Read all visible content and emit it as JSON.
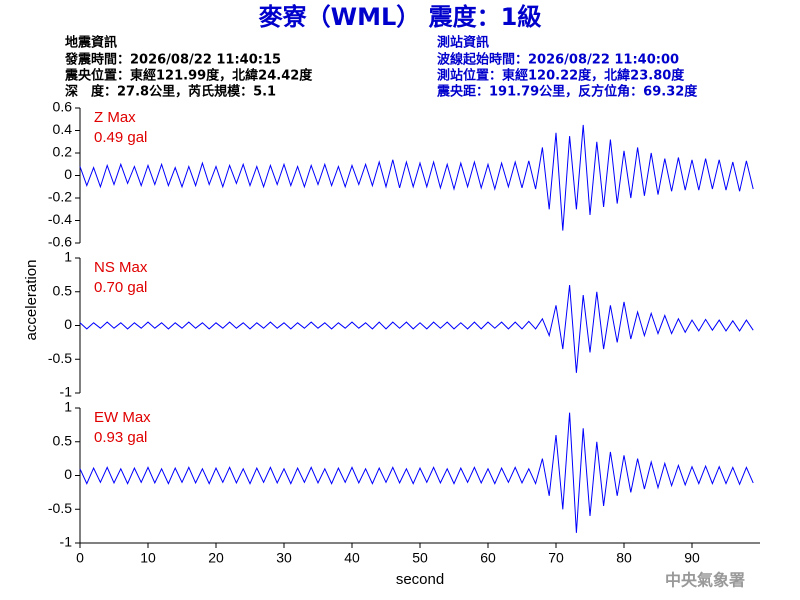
{
  "title": "麥寮（WML） 震度：1級",
  "header": {
    "left": [
      "地震資訊",
      "發震時間：2026/08/22 11:40:15",
      "震央位置：東經121.99度，北緯24.42度",
      "深　度：27.8公里，芮氏規模：5.1"
    ],
    "right": [
      "測站資訊",
      "波線起始時間：2026/08/22 11:40:00",
      "測站位置：東經120.22度，北緯23.80度",
      "震央距：191.79公里，反方位角：69.32度"
    ]
  },
  "y_label": "acceleration",
  "agency": "中央氣象署",
  "chart_data": [
    {
      "type": "line",
      "color": "#0000ff",
      "annotation_color": "#e00000",
      "max_label": "Z Max",
      "max_value_label": "0.49 gal",
      "xlim": [
        0,
        100
      ],
      "ylim": [
        -0.6,
        0.6
      ],
      "yticks": [
        0.6,
        0.4,
        0.2,
        0,
        -0.2,
        -0.4,
        -0.6
      ],
      "x": [
        0,
        1,
        2,
        3,
        4,
        5,
        6,
        7,
        8,
        9,
        10,
        11,
        12,
        13,
        14,
        15,
        16,
        17,
        18,
        19,
        20,
        21,
        22,
        23,
        24,
        25,
        26,
        27,
        28,
        29,
        30,
        31,
        32,
        33,
        34,
        35,
        36,
        37,
        38,
        39,
        40,
        41,
        42,
        43,
        44,
        45,
        46,
        47,
        48,
        49,
        50,
        51,
        52,
        53,
        54,
        55,
        56,
        57,
        58,
        59,
        60,
        61,
        62,
        63,
        64,
        65,
        66,
        67,
        68,
        69,
        70,
        71,
        72,
        73,
        74,
        75,
        76,
        77,
        78,
        79,
        80,
        81,
        82,
        83,
        84,
        85,
        86,
        87,
        88,
        89,
        90,
        91,
        92,
        93,
        94,
        95,
        96,
        97,
        98,
        99
      ],
      "values": [
        0.08,
        -0.09,
        0.07,
        -0.1,
        0.09,
        -0.08,
        0.1,
        -0.07,
        0.08,
        -0.09,
        0.09,
        -0.08,
        0.1,
        -0.09,
        0.07,
        -0.1,
        0.08,
        -0.09,
        0.11,
        -0.08,
        0.08,
        -0.1,
        0.09,
        -0.07,
        0.1,
        -0.09,
        0.08,
        -0.1,
        0.09,
        -0.08,
        0.1,
        -0.09,
        0.08,
        -0.1,
        0.09,
        -0.08,
        0.1,
        -0.09,
        0.08,
        -0.1,
        0.09,
        -0.08,
        0.1,
        -0.09,
        0.12,
        -0.1,
        0.14,
        -0.11,
        0.12,
        -0.1,
        0.11,
        -0.1,
        0.12,
        -0.11,
        0.1,
        -0.12,
        0.11,
        -0.1,
        0.12,
        -0.11,
        0.1,
        -0.12,
        0.11,
        -0.1,
        0.12,
        -0.11,
        0.13,
        -0.12,
        0.25,
        -0.3,
        0.38,
        -0.49,
        0.35,
        -0.3,
        0.45,
        -0.35,
        0.3,
        -0.28,
        0.32,
        -0.25,
        0.22,
        -0.2,
        0.25,
        -0.18,
        0.2,
        -0.17,
        0.15,
        -0.14,
        0.16,
        -0.13,
        0.14,
        -0.13,
        0.15,
        -0.12,
        0.14,
        -0.13,
        0.12,
        -0.14,
        0.13,
        -0.12
      ]
    },
    {
      "type": "line",
      "color": "#0000ff",
      "annotation_color": "#e00000",
      "max_label": "NS Max",
      "max_value_label": "0.70 gal",
      "xlim": [
        0,
        100
      ],
      "ylim": [
        -1,
        1
      ],
      "yticks": [
        1,
        0.5,
        0,
        -0.5,
        -1
      ],
      "x": [
        0,
        1,
        2,
        3,
        4,
        5,
        6,
        7,
        8,
        9,
        10,
        11,
        12,
        13,
        14,
        15,
        16,
        17,
        18,
        19,
        20,
        21,
        22,
        23,
        24,
        25,
        26,
        27,
        28,
        29,
        30,
        31,
        32,
        33,
        34,
        35,
        36,
        37,
        38,
        39,
        40,
        41,
        42,
        43,
        44,
        45,
        46,
        47,
        48,
        49,
        50,
        51,
        52,
        53,
        54,
        55,
        56,
        57,
        58,
        59,
        60,
        61,
        62,
        63,
        64,
        65,
        66,
        67,
        68,
        69,
        70,
        71,
        72,
        73,
        74,
        75,
        76,
        77,
        78,
        79,
        80,
        81,
        82,
        83,
        84,
        85,
        86,
        87,
        88,
        89,
        90,
        91,
        92,
        93,
        94,
        95,
        96,
        97,
        98,
        99
      ],
      "values": [
        0.04,
        -0.05,
        0.04,
        -0.04,
        0.05,
        -0.04,
        0.04,
        -0.05,
        0.04,
        -0.04,
        0.05,
        -0.04,
        0.04,
        -0.05,
        0.04,
        -0.04,
        0.05,
        -0.04,
        0.04,
        -0.05,
        0.04,
        -0.04,
        0.05,
        -0.04,
        0.04,
        -0.05,
        0.04,
        -0.04,
        0.05,
        -0.04,
        0.04,
        -0.05,
        0.04,
        -0.04,
        0.05,
        -0.04,
        0.04,
        -0.05,
        0.04,
        -0.04,
        0.05,
        -0.04,
        0.04,
        -0.05,
        0.05,
        -0.05,
        0.05,
        -0.04,
        0.05,
        -0.05,
        0.04,
        -0.05,
        0.05,
        -0.04,
        0.05,
        -0.05,
        0.04,
        -0.05,
        0.05,
        -0.05,
        0.05,
        -0.04,
        0.05,
        -0.05,
        0.05,
        -0.05,
        0.06,
        -0.05,
        0.1,
        -0.15,
        0.3,
        -0.35,
        0.6,
        -0.7,
        0.45,
        -0.4,
        0.5,
        -0.35,
        0.3,
        -0.25,
        0.35,
        -0.2,
        0.2,
        -0.15,
        0.18,
        -0.12,
        0.15,
        -0.12,
        0.1,
        -0.1,
        0.08,
        -0.08,
        0.09,
        -0.07,
        0.08,
        -0.08,
        0.07,
        -0.08,
        0.08,
        -0.07
      ]
    },
    {
      "type": "line",
      "color": "#0000ff",
      "annotation_color": "#e00000",
      "max_label": "EW Max",
      "max_value_label": "0.93 gal",
      "x_label": "second",
      "xlim": [
        0,
        100
      ],
      "ylim": [
        -1,
        1
      ],
      "yticks": [
        1,
        0.5,
        0,
        -0.5,
        -1
      ],
      "xticks": [
        0,
        10,
        20,
        30,
        40,
        50,
        60,
        70,
        80,
        90
      ],
      "x": [
        0,
        1,
        2,
        3,
        4,
        5,
        6,
        7,
        8,
        9,
        10,
        11,
        12,
        13,
        14,
        15,
        16,
        17,
        18,
        19,
        20,
        21,
        22,
        23,
        24,
        25,
        26,
        27,
        28,
        29,
        30,
        31,
        32,
        33,
        34,
        35,
        36,
        37,
        38,
        39,
        40,
        41,
        42,
        43,
        44,
        45,
        46,
        47,
        48,
        49,
        50,
        51,
        52,
        53,
        54,
        55,
        56,
        57,
        58,
        59,
        60,
        61,
        62,
        63,
        64,
        65,
        66,
        67,
        68,
        69,
        70,
        71,
        72,
        73,
        74,
        75,
        76,
        77,
        78,
        79,
        80,
        81,
        82,
        83,
        84,
        85,
        86,
        87,
        88,
        89,
        90,
        91,
        92,
        93,
        94,
        95,
        96,
        97,
        98,
        99
      ],
      "values": [
        0.1,
        -0.12,
        0.11,
        -0.1,
        0.12,
        -0.11,
        0.1,
        -0.12,
        0.11,
        -0.1,
        0.12,
        -0.11,
        0.1,
        -0.12,
        0.11,
        -0.1,
        0.12,
        -0.11,
        0.1,
        -0.12,
        0.11,
        -0.1,
        0.12,
        -0.11,
        0.1,
        -0.12,
        0.11,
        -0.1,
        0.12,
        -0.11,
        0.1,
        -0.12,
        0.11,
        -0.1,
        0.12,
        -0.11,
        0.1,
        -0.12,
        0.11,
        -0.1,
        0.12,
        -0.11,
        0.1,
        -0.12,
        0.11,
        -0.1,
        0.12,
        -0.11,
        0.1,
        -0.12,
        0.11,
        -0.1,
        0.12,
        -0.11,
        0.1,
        -0.12,
        0.11,
        -0.1,
        0.12,
        -0.11,
        0.1,
        -0.12,
        0.11,
        -0.1,
        0.12,
        -0.11,
        0.1,
        -0.12,
        0.25,
        -0.3,
        0.6,
        -0.5,
        0.93,
        -0.85,
        0.7,
        -0.6,
        0.5,
        -0.45,
        0.35,
        -0.3,
        0.3,
        -0.25,
        0.25,
        -0.2,
        0.2,
        -0.18,
        0.18,
        -0.15,
        0.15,
        -0.14,
        0.13,
        -0.12,
        0.14,
        -0.12,
        0.13,
        -0.12,
        0.12,
        -0.13,
        0.12,
        -0.11
      ]
    }
  ]
}
